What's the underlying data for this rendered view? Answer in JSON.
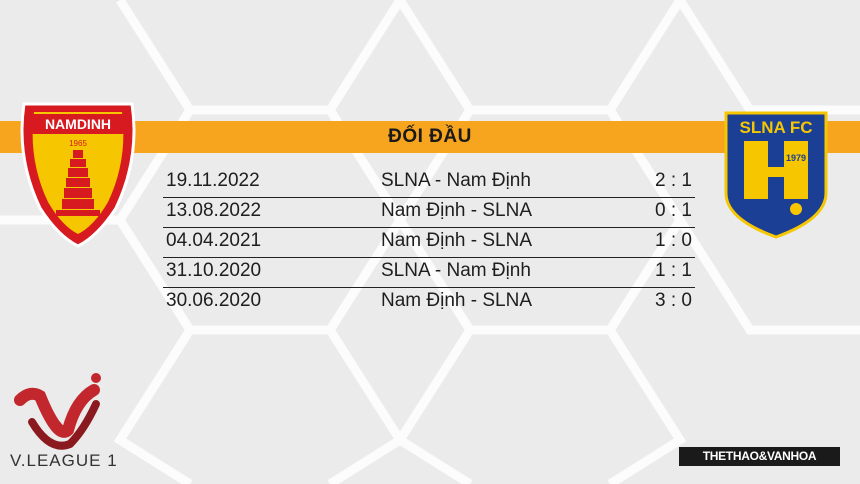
{
  "banner": {
    "title": "ĐỐI ĐẦU"
  },
  "matches": [
    {
      "date": "19.11.2022",
      "fixture": "SLNA - Nam Định",
      "score": "2 : 1"
    },
    {
      "date": "13.08.2022",
      "fixture": "Nam Định - SLNA",
      "score": "0 : 1"
    },
    {
      "date": "04.04.2021",
      "fixture": "Nam Định - SLNA",
      "score": "1 : 0"
    },
    {
      "date": "31.10.2020",
      "fixture": "SLNA - Nam Định",
      "score": "1 : 1"
    },
    {
      "date": "30.06.2020",
      "fixture": "Nam Định - SLNA",
      "score": "3 : 0"
    }
  ],
  "teams": {
    "home_logo_text": "NAMDINH",
    "home_logo_year": "1965",
    "away_logo_text": "SLNA FC",
    "away_logo_year": "1979"
  },
  "league": {
    "name": "V.LEAGUE 1"
  },
  "brand": {
    "name": "THETHAO&VANHOA"
  },
  "colors": {
    "banner": "#f7a41f",
    "home_red": "#d71920",
    "away_blue": "#1b3f94",
    "away_yellow": "#f6c700"
  }
}
